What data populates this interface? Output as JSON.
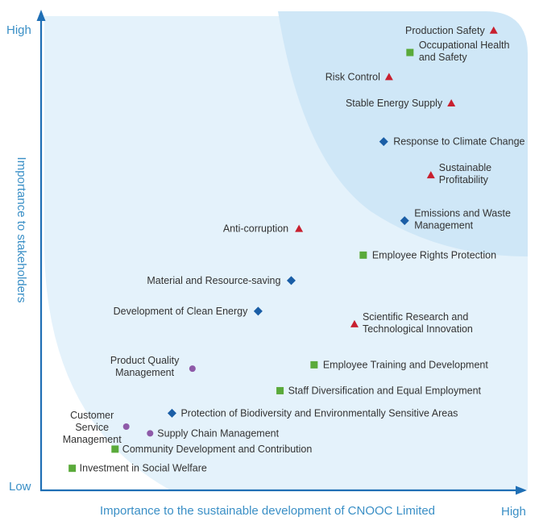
{
  "chart_data": {
    "type": "scatter",
    "title": "",
    "xlabel": "Importance to the sustainable development of CNOOC Limited",
    "ylabel": "Importance to stakeholders",
    "x_ticks": {
      "low": "",
      "high": "High"
    },
    "y_ticks": {
      "low": "Low",
      "high": "High"
    },
    "xlim": [
      0,
      100
    ],
    "ylim": [
      0,
      100
    ],
    "grid": false,
    "legend": "none",
    "colors": {
      "axis": "#1f6fb5",
      "axis_text": "#3a8fc6",
      "zone_light": "#e4f2fb",
      "zone_dark": "#cfe7f7",
      "triangle": "#c8202f",
      "diamond": "#1a5ea6",
      "square": "#5aaa3a",
      "circle": "#8e5aa8"
    },
    "points": [
      {
        "lines": [
          "Production Safety"
        ],
        "x": 93,
        "y": 96,
        "marker": "triangle"
      },
      {
        "lines": [
          "Occupational Health",
          "and Safety"
        ],
        "x": 75.8,
        "y": 91.4,
        "marker": "square"
      },
      {
        "lines": [
          "Risk Control"
        ],
        "x": 71.5,
        "y": 86.3,
        "marker": "triangle"
      },
      {
        "lines": [
          "Stable Energy Supply"
        ],
        "x": 84.3,
        "y": 80.8,
        "marker": "triangle"
      },
      {
        "lines": [
          "Response to Climate Change"
        ],
        "x": 70.4,
        "y": 72.8,
        "marker": "diamond"
      },
      {
        "lines": [
          "Sustainable",
          "Profitability"
        ],
        "x": 80.1,
        "y": 65.8,
        "marker": "triangle"
      },
      {
        "lines": [
          "Anti-corruption"
        ],
        "x": 53,
        "y": 54.6,
        "marker": "triangle"
      },
      {
        "lines": [
          "Emissions and Waste",
          "Management"
        ],
        "x": 74.7,
        "y": 56.3,
        "marker": "diamond"
      },
      {
        "lines": [
          "Employee Rights Protection"
        ],
        "x": 66.2,
        "y": 49.1,
        "marker": "square"
      },
      {
        "lines": [
          "Material and Resource-saving"
        ],
        "x": 51.4,
        "y": 43.8,
        "marker": "diamond"
      },
      {
        "lines": [
          "Development of Clean Energy"
        ],
        "x": 44.6,
        "y": 37.4,
        "marker": "diamond"
      },
      {
        "lines": [
          "Scientific Research and",
          "Technological Innovation"
        ],
        "x": 64.4,
        "y": 34.7,
        "marker": "triangle"
      },
      {
        "lines": [
          "Product Quality",
          "Management"
        ],
        "x": 31.1,
        "y": 25.4,
        "marker": "circle"
      },
      {
        "lines": [
          "Employee Training and Development"
        ],
        "x": 56.1,
        "y": 26.2,
        "marker": "square"
      },
      {
        "lines": [
          "Staff Diversification and Equal Employment"
        ],
        "x": 49.1,
        "y": 20.8,
        "marker": "square"
      },
      {
        "lines": [
          "Customer",
          "Service",
          "Management"
        ],
        "x": 17.5,
        "y": 13.3,
        "marker": "circle"
      },
      {
        "lines": [
          "Protection of Biodiversity and Environmentally Sensitive Areas"
        ],
        "x": 26.9,
        "y": 16.1,
        "marker": "diamond"
      },
      {
        "lines": [
          "Supply Chain Management"
        ],
        "x": 22.4,
        "y": 11.9,
        "marker": "circle"
      },
      {
        "lines": [
          "Community Development and Contribution"
        ],
        "x": 15.2,
        "y": 8.6,
        "marker": "square"
      },
      {
        "lines": [
          "Investment in Social Welfare"
        ],
        "x": 6.4,
        "y": 4.6,
        "marker": "square"
      }
    ]
  }
}
